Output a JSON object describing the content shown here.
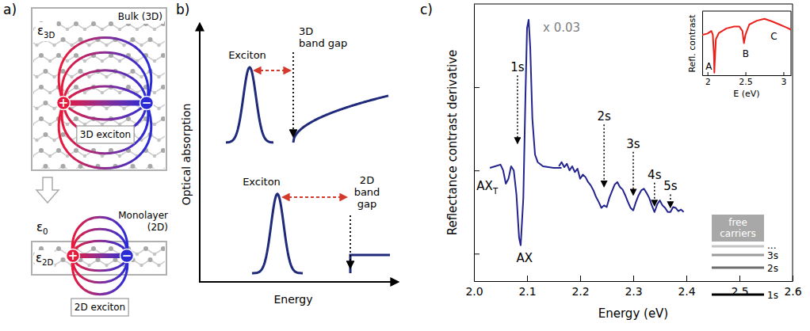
{
  "diagram": {
    "panel_a": {
      "label": "a)",
      "bulk": {
        "title": "Bulk (3D)",
        "dielectric": {
          "symbol": "ε",
          "subscript": "3D"
        },
        "exciton": "3D exciton"
      },
      "monolayer": {
        "title": [
          "Monolayer",
          "(2D)"
        ],
        "dielectric_outside": {
          "symbol": "ε",
          "subscript": "0"
        },
        "dielectric_inside": {
          "symbol": "ε",
          "subscript": "2D"
        },
        "exciton": "2D exciton"
      },
      "charges": {
        "positive": "+",
        "negative": "−"
      }
    },
    "panel_b": {
      "label": "b)",
      "y_axis_title": "Optical absorption",
      "x_axis_title": "Energy",
      "top": {
        "peak_label": "Exciton",
        "gap_label": [
          "3D",
          "band gap"
        ]
      },
      "bottom": {
        "peak_label": "Exciton",
        "gap_label": [
          "2D",
          "band",
          "gap"
        ]
      }
    }
  },
  "chart_data": [
    {
      "type": "line",
      "label": "c)",
      "x_label": "Energy (eV)",
      "y_label": "Reflectance contrast derivative",
      "xlim": [
        2.0,
        2.6
      ],
      "ylim": [
        -1.33,
        2
      ],
      "xticks": [
        {
          "value": 2,
          "label": "2.0"
        },
        2.1,
        2.2,
        2.3,
        2.4,
        2.5,
        2.6
      ],
      "yticks": [
        -1,
        0,
        1
      ],
      "tick_labels": "x",
      "series": [
        {
          "color": "#24248f",
          "x": [
            2.03,
            2.04,
            2.05,
            2.055,
            2.06,
            2.065,
            2.07,
            2.075,
            2.08,
            2.085,
            2.088,
            2.093,
            2.097,
            2.1,
            2.103,
            2.106,
            2.11,
            2.115,
            2.12,
            2.13,
            2.15,
            2.165
          ],
          "values": [
            0.03,
            0.05,
            0.07,
            0,
            -0.16,
            -0.1,
            0.05,
            0,
            -0.29,
            -0.81,
            -0.9,
            -0.33,
            0.9,
            1.71,
            1.81,
            1.48,
            0.62,
            0.19,
            0.1,
            0.05,
            0.03,
            0.03
          ]
        },
        {
          "color": "#24248f",
          "x": [
            2.16,
            2.165,
            2.17,
            2.175,
            2.18,
            2.185,
            2.19,
            2.195,
            2.2,
            2.205,
            2.21,
            2.215,
            2.22,
            2.225,
            2.23,
            2.235,
            2.24,
            2.245,
            2.25,
            2.255,
            2.26,
            2.265,
            2.27,
            2.275,
            2.28,
            2.285,
            2.29,
            2.295,
            2.3,
            2.305,
            2.31,
            2.315,
            2.32,
            2.325,
            2.33,
            2.335,
            2.34,
            2.345,
            2.35,
            2.355,
            2.36,
            2.365,
            2.37,
            2.375,
            2.38,
            2.385,
            2.39,
            2.395
          ],
          "values": [
            0.05,
            0.1,
            0.04,
            0.08,
            0,
            0.05,
            -0.02,
            0.02,
            -0.1,
            -0.05,
            -0.08,
            -0.14,
            -0.18,
            -0.24,
            -0.32,
            -0.38,
            -0.45,
            -0.42,
            -0.44,
            -0.33,
            -0.25,
            -0.17,
            -0.14,
            -0.2,
            -0.23,
            -0.3,
            -0.38,
            -0.45,
            -0.48,
            -0.38,
            -0.3,
            -0.24,
            -0.22,
            -0.27,
            -0.33,
            -0.42,
            -0.5,
            -0.41,
            -0.36,
            -0.42,
            -0.45,
            -0.5,
            -0.5,
            -0.44,
            -0.45,
            -0.49,
            -0.47,
            -0.5
          ]
        }
      ],
      "annotations": [
        {
          "text": "1s",
          "x": 2.082,
          "y": 1.19,
          "arrow_to": 0.33
        },
        {
          "text": "x 0.03",
          "x": 2.13,
          "y": 1.67,
          "color": "#808080"
        },
        {
          "text": "AX",
          "subscript": "T",
          "x": 2.005,
          "y": -0.24
        },
        {
          "text": "AX",
          "x": 2.08,
          "y": -1.1
        },
        {
          "text": "2s",
          "x": 2.245,
          "y": 0.6,
          "arrow_to": -0.19
        },
        {
          "text": "3s",
          "x": 2.3,
          "y": 0.27,
          "arrow_to": -0.29
        },
        {
          "text": "4s",
          "x": 2.34,
          "y": -0.1,
          "arrow_to": -0.42
        },
        {
          "text": "5s",
          "x": 2.37,
          "y": -0.24,
          "arrow_to": -0.44
        }
      ],
      "levels": {
        "title": [
          "free",
          "carriers"
        ],
        "labels": [
          "...",
          "3s",
          "2s",
          "1s"
        ]
      }
    },
    {
      "type": "line",
      "x_label": "E (eV)",
      "y_label": "Refl. contrast",
      "xlim": [
        1.93,
        3.1
      ],
      "ylim": [
        0,
        1
      ],
      "xticks": [
        2,
        2.5,
        3
      ],
      "yticks": [],
      "tick_labels": "x",
      "series": [
        {
          "color": "#e8221b",
          "x": [
            1.93,
            2.0,
            2.05,
            2.07,
            2.085,
            2.09,
            2.095,
            2.11,
            2.15,
            2.25,
            2.35,
            2.42,
            2.46,
            2.48,
            2.5,
            2.55,
            2.65,
            2.75,
            2.85,
            2.95,
            3.05,
            3.1
          ],
          "values": [
            0.63,
            0.65,
            0.69,
            0.63,
            0.31,
            0.04,
            0.19,
            0.56,
            0.66,
            0.73,
            0.76,
            0.76,
            0.69,
            0.5,
            0.63,
            0.79,
            0.85,
            0.88,
            0.84,
            0.79,
            0.74,
            0.71
          ]
        }
      ],
      "annotations": [
        {
          "text": "A",
          "x": 1.975,
          "y": 0.09
        },
        {
          "text": "B",
          "x": 2.46,
          "y": 0.28
        },
        {
          "text": "C",
          "x": 2.83,
          "y": 0.55
        }
      ]
    }
  ]
}
